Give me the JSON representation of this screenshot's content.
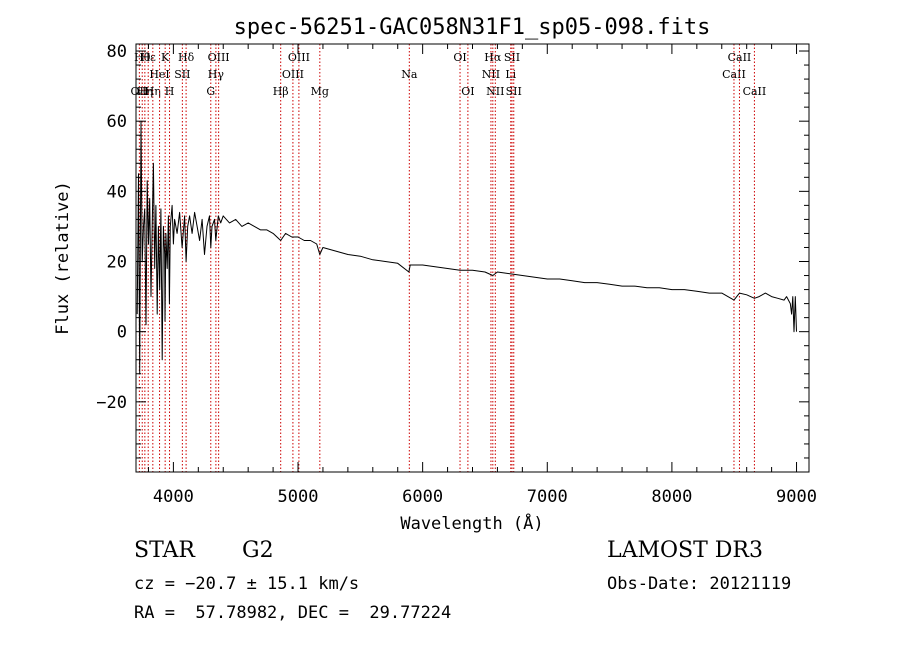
{
  "chart_data": {
    "type": "line",
    "title": "spec-56251-GAC058N31F1_sp05-098.fits",
    "xlabel": "Wavelength (Å)",
    "ylabel": "Flux (relative)",
    "xlim": [
      3700,
      9100
    ],
    "ylim": [
      -40,
      82
    ],
    "x_ticks": [
      4000,
      5000,
      6000,
      7000,
      8000,
      9000
    ],
    "y_ticks": [
      -20,
      0,
      20,
      40,
      60,
      80
    ],
    "x_tick_labels": [
      "4000",
      "5000",
      "6000",
      "7000",
      "8000",
      "9000"
    ],
    "y_tick_labels": [
      "−20",
      "0",
      "20",
      "40",
      "60",
      "80"
    ],
    "series": [
      {
        "name": "spectrum",
        "x": [
          3710,
          3720,
          3730,
          3740,
          3750,
          3760,
          3770,
          3780,
          3790,
          3800,
          3810,
          3820,
          3830,
          3840,
          3850,
          3860,
          3870,
          3880,
          3890,
          3900,
          3910,
          3920,
          3930,
          3933,
          3940,
          3950,
          3960,
          3968,
          3975,
          3990,
          4000,
          4010,
          4030,
          4050,
          4070,
          4090,
          4102,
          4115,
          4130,
          4150,
          4170,
          4190,
          4210,
          4230,
          4250,
          4270,
          4290,
          4300,
          4310,
          4330,
          4340,
          4360,
          4380,
          4400,
          4450,
          4500,
          4550,
          4600,
          4650,
          4700,
          4750,
          4800,
          4861,
          4900,
          4950,
          5000,
          5050,
          5100,
          5150,
          5175,
          5200,
          5300,
          5400,
          5500,
          5600,
          5700,
          5800,
          5890,
          5900,
          6000,
          6100,
          6200,
          6300,
          6400,
          6500,
          6563,
          6600,
          6700,
          6800,
          6900,
          7000,
          7100,
          7200,
          7300,
          7400,
          7500,
          7600,
          7700,
          7800,
          7900,
          8000,
          8100,
          8200,
          8300,
          8400,
          8498,
          8542,
          8600,
          8662,
          8700,
          8750,
          8800,
          8850,
          8900,
          8920,
          8950,
          8960,
          8970,
          8980,
          8990,
          9000
        ],
        "y": [
          5,
          45,
          -12,
          60,
          20,
          30,
          35,
          2,
          43,
          25,
          38,
          10,
          30,
          48,
          18,
          36,
          5,
          30,
          12,
          35,
          -8,
          30,
          22,
          3,
          28,
          18,
          33,
          8,
          30,
          36,
          25,
          32,
          28,
          34,
          24,
          33,
          20,
          30,
          33,
          28,
          34,
          30,
          26,
          32,
          22,
          30,
          33,
          24,
          30,
          32,
          26,
          33,
          31,
          33,
          31,
          32,
          30,
          31,
          30,
          29,
          29,
          28,
          26,
          28,
          27,
          27,
          26,
          26,
          25,
          22,
          24,
          23,
          22,
          21.5,
          20.5,
          20,
          19.5,
          17,
          19,
          19,
          18.5,
          18,
          17.5,
          17.5,
          17,
          16,
          17,
          16.5,
          16,
          15.5,
          15,
          15,
          14.5,
          14,
          14,
          13.5,
          13,
          13,
          12.5,
          12.5,
          12,
          12,
          11.5,
          11,
          11,
          9,
          11,
          10.5,
          9.5,
          10,
          11,
          10,
          9.5,
          9,
          10,
          8,
          5,
          10,
          0,
          10,
          0
        ]
      }
    ],
    "lines": [
      {
        "x": 3727,
        "label": "OII",
        "row": 3
      },
      {
        "x": 3750,
        "label": "Hθ",
        "row": 1
      },
      {
        "x": 3771,
        "label": "Hη",
        "row": 3
      },
      {
        "x": 3798,
        "label": "Hε",
        "row": 1
      },
      {
        "x": 3835,
        "label": "Hη",
        "row": 3
      },
      {
        "x": 3889,
        "label": "HeI",
        "row": 2
      },
      {
        "x": 3934,
        "label": "K",
        "row": 1
      },
      {
        "x": 3969,
        "label": "H",
        "row": 3
      },
      {
        "x": 4072,
        "label": "SII",
        "row": 2
      },
      {
        "x": 4102,
        "label": "Hδ",
        "row": 1
      },
      {
        "x": 4300,
        "label": "G",
        "row": 3
      },
      {
        "x": 4341,
        "label": "Hγ",
        "row": 2
      },
      {
        "x": 4363,
        "label": "OIII",
        "row": 1
      },
      {
        "x": 4861,
        "label": "Hβ",
        "row": 3
      },
      {
        "x": 4959,
        "label": "OIII",
        "row": 2
      },
      {
        "x": 5007,
        "label": "OIII",
        "row": 1
      },
      {
        "x": 5175,
        "label": "Mg",
        "row": 3
      },
      {
        "x": 5893,
        "label": "Na",
        "row": 2
      },
      {
        "x": 6300,
        "label": "OI",
        "row": 1
      },
      {
        "x": 6363,
        "label": "OI",
        "row": 3
      },
      {
        "x": 6548,
        "label": "NII",
        "row": 2
      },
      {
        "x": 6563,
        "label": "Hα",
        "row": 1
      },
      {
        "x": 6583,
        "label": "NII",
        "row": 3
      },
      {
        "x": 6707,
        "label": "Li",
        "row": 2
      },
      {
        "x": 6717,
        "label": "SII",
        "row": 1
      },
      {
        "x": 6731,
        "label": "SII",
        "row": 3
      },
      {
        "x": 8498,
        "label": "CaII",
        "row": 2
      },
      {
        "x": 8542,
        "label": "CaII",
        "row": 1
      },
      {
        "x": 8662,
        "label": "CaII",
        "row": 3
      }
    ],
    "grid": false,
    "line_color": "#000000",
    "marker_color": "#cc0000"
  },
  "info": {
    "class": "STAR",
    "subclass": "G2",
    "cz": "cz = −20.7 ± 15.1 km/s",
    "radec": "RA =  57.78982, DEC =  29.77224",
    "survey": "LAMOST DR3",
    "obs_date": "Obs-Date: 20121119"
  }
}
